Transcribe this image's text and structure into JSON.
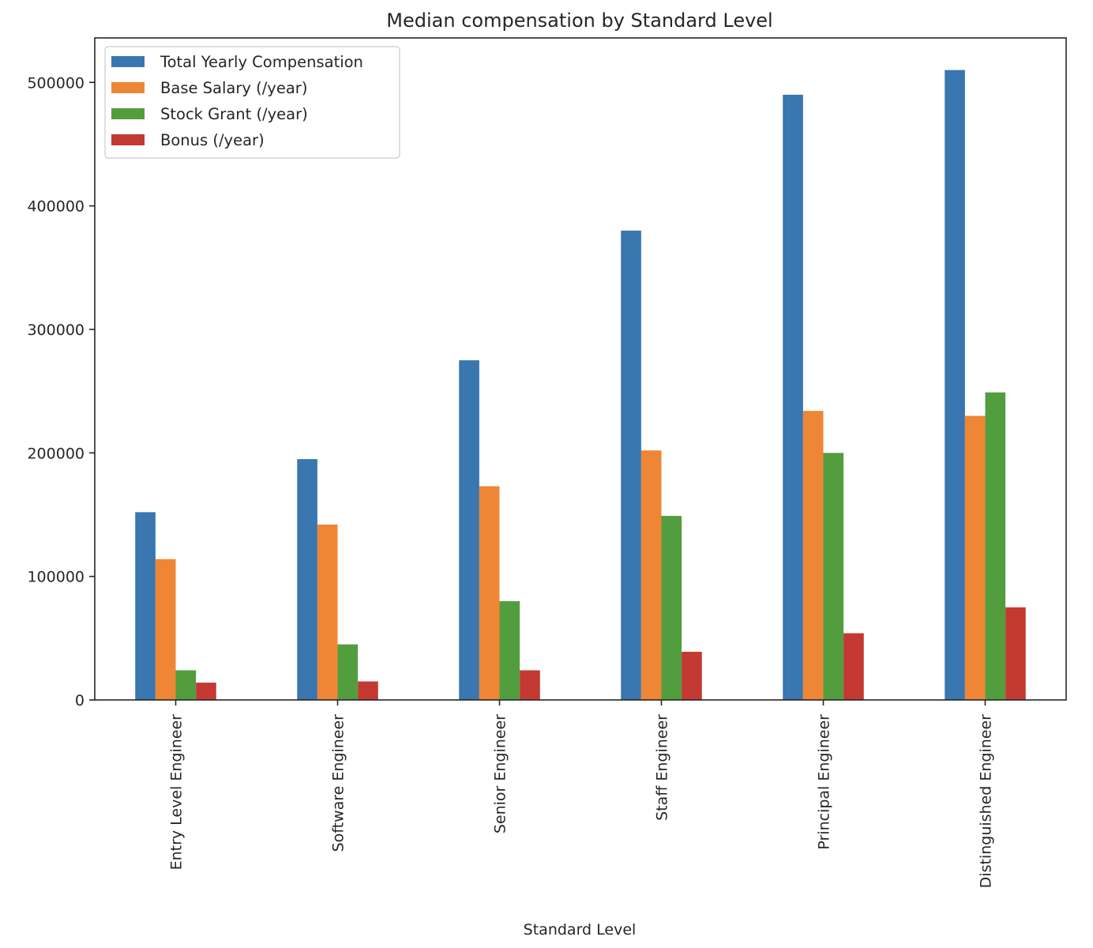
{
  "chart_data": {
    "type": "bar",
    "title": "Median compensation by Standard Level",
    "xlabel": "Standard Level",
    "ylabel": "",
    "categories": [
      "Entry Level Engineer",
      "Software Engineer",
      "Senior Engineer",
      "Staff Engineer",
      "Principal Engineer",
      "Distinguished Engineer"
    ],
    "series": [
      {
        "name": "Total Yearly Compensation",
        "color": "#3a76af",
        "values": [
          152000,
          195000,
          275000,
          380000,
          490000,
          510000
        ]
      },
      {
        "name": "Base Salary (/year)",
        "color": "#ef8636",
        "values": [
          114000,
          142000,
          173000,
          202000,
          234000,
          230000
        ]
      },
      {
        "name": "Stock Grant (/year)",
        "color": "#529e3f",
        "values": [
          24000,
          45000,
          80000,
          149000,
          200000,
          249000
        ]
      },
      {
        "name": "Bonus (/year)",
        "color": "#c43932",
        "values": [
          14000,
          15000,
          24000,
          39000,
          54000,
          75000
        ]
      }
    ],
    "ylim": [
      0,
      536000
    ],
    "yticks": [
      0,
      100000,
      200000,
      300000,
      400000,
      500000
    ],
    "ytick_labels": [
      "0",
      "100000",
      "200000",
      "300000",
      "400000",
      "500000"
    ],
    "grid": false,
    "legend_position": "upper left"
  }
}
